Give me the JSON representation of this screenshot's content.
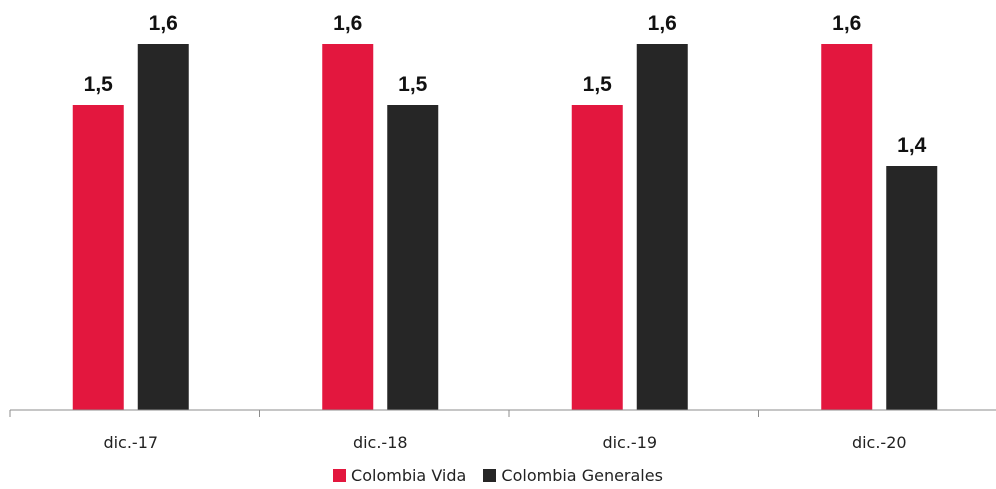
{
  "chart_data": {
    "type": "bar",
    "categories": [
      "dic.-17",
      "dic.-18",
      "dic.-19",
      "dic.-20"
    ],
    "series": [
      {
        "name": "Colombia Vida",
        "color": "#e3173e",
        "values": [
          1.5,
          1.6,
          1.5,
          1.6
        ],
        "labels": [
          "1,5",
          "1,6",
          "1,5",
          "1,6"
        ]
      },
      {
        "name": "Colombia Generales",
        "color": "#262626",
        "values": [
          1.6,
          1.5,
          1.6,
          1.4
        ],
        "labels": [
          "1,6",
          "1,5",
          "1,6",
          "1,4"
        ]
      }
    ],
    "data_labels": true,
    "grid": false,
    "legend_position": "bottom"
  }
}
